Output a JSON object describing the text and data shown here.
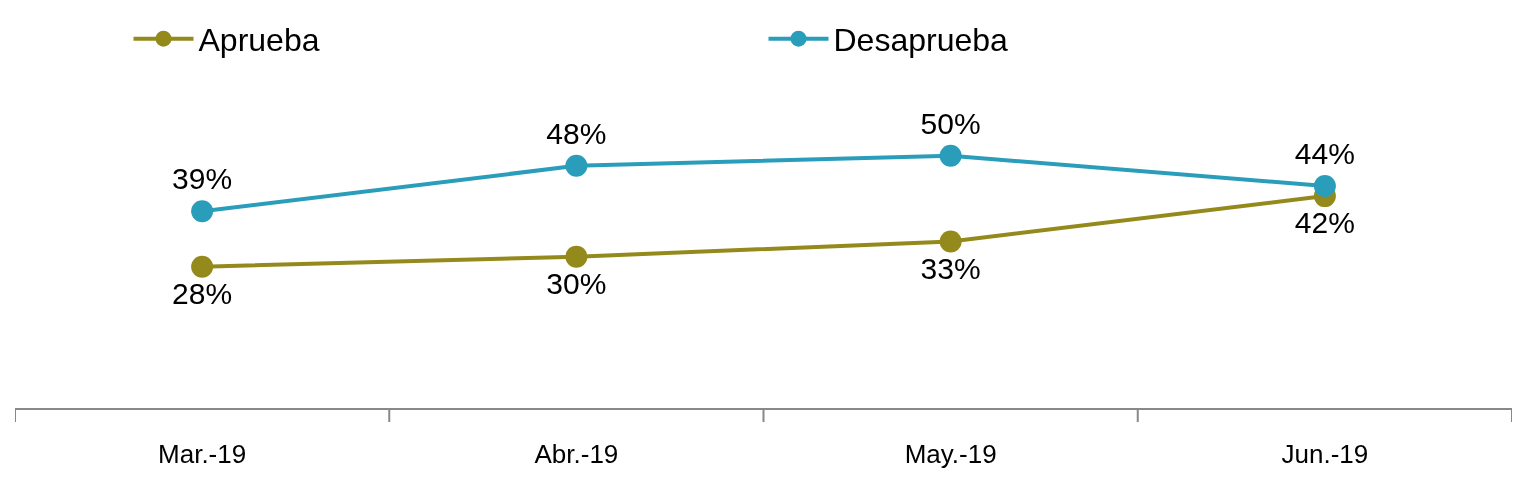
{
  "chart_data": {
    "type": "line",
    "categories": [
      "Mar.-19",
      "Abr.-19",
      "May.-19",
      "Jun.-19"
    ],
    "series": [
      {
        "name": "Aprueba",
        "color": "#948a1c",
        "values": [
          28,
          30,
          33,
          42
        ],
        "value_labels": [
          "28%",
          "30%",
          "33%",
          "42%"
        ]
      },
      {
        "name": "Desaprueba",
        "color": "#2a9dbb",
        "values": [
          39,
          48,
          50,
          44
        ],
        "value_labels": [
          "39%",
          "48%",
          "50%",
          "44%"
        ]
      }
    ],
    "legend": "top",
    "grid": false,
    "marker": "circle",
    "line_style": "solid"
  }
}
